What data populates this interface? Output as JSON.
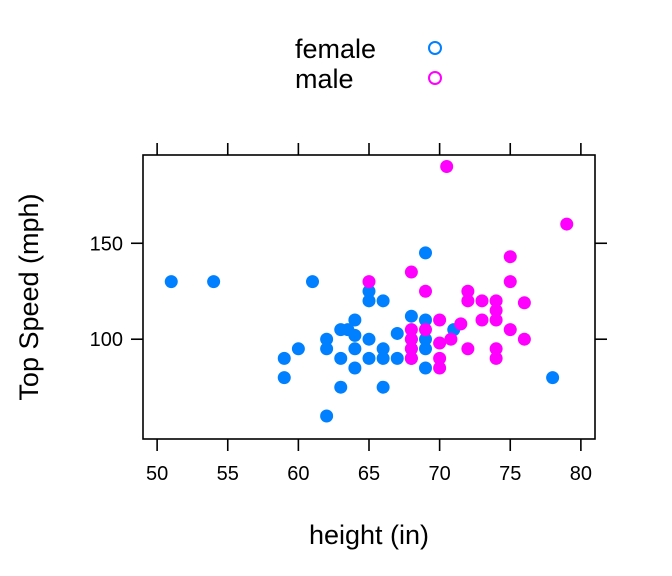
{
  "chart_data": {
    "type": "scatter",
    "xlabel": "height (in)",
    "ylabel": "Top Speed (mph)",
    "xlim": [
      49,
      81
    ],
    "ylim": [
      48,
      196
    ],
    "xticks": [
      50,
      55,
      60,
      65,
      70,
      75,
      80
    ],
    "yticks": [
      100,
      150
    ],
    "grid": false,
    "legend_position": "top-center",
    "series": [
      {
        "name": "female",
        "color": "#0080ff",
        "points": [
          [
            51,
            130
          ],
          [
            54,
            130
          ],
          [
            59,
            90
          ],
          [
            59,
            80
          ],
          [
            60,
            95
          ],
          [
            61,
            130
          ],
          [
            62,
            60
          ],
          [
            62,
            95
          ],
          [
            62,
            100
          ],
          [
            63,
            75
          ],
          [
            63,
            90
          ],
          [
            63,
            105
          ],
          [
            63.5,
            105
          ],
          [
            64,
            85
          ],
          [
            64,
            95
          ],
          [
            64,
            102
          ],
          [
            64,
            110
          ],
          [
            65,
            90
          ],
          [
            65,
            100
          ],
          [
            65,
            120
          ],
          [
            65,
            125
          ],
          [
            66,
            75
          ],
          [
            66,
            90
          ],
          [
            66,
            95
          ],
          [
            66,
            120
          ],
          [
            67,
            90
          ],
          [
            67,
            103
          ],
          [
            68,
            90
          ],
          [
            68,
            95
          ],
          [
            68,
            100
          ],
          [
            68,
            112
          ],
          [
            69,
            85
          ],
          [
            69,
            95
          ],
          [
            69,
            100
          ],
          [
            69,
            110
          ],
          [
            69,
            145
          ],
          [
            71,
            105
          ],
          [
            78,
            80
          ]
        ]
      },
      {
        "name": "male",
        "color": "#ff00ff",
        "points": [
          [
            65,
            130
          ],
          [
            68,
            90
          ],
          [
            68,
            95
          ],
          [
            68,
            100
          ],
          [
            68,
            105
          ],
          [
            68,
            135
          ],
          [
            69,
            125
          ],
          [
            69,
            105
          ],
          [
            70,
            85
          ],
          [
            70,
            90
          ],
          [
            70,
            98
          ],
          [
            70,
            110
          ],
          [
            70.5,
            190
          ],
          [
            70.8,
            100
          ],
          [
            71.5,
            108
          ],
          [
            72,
            95
          ],
          [
            72,
            120
          ],
          [
            72,
            125
          ],
          [
            73,
            110
          ],
          [
            73,
            120
          ],
          [
            74,
            90
          ],
          [
            74,
            95
          ],
          [
            74,
            110
          ],
          [
            74,
            115
          ],
          [
            74,
            120
          ],
          [
            75,
            105
          ],
          [
            75,
            130
          ],
          [
            75,
            143
          ],
          [
            76,
            100
          ],
          [
            76,
            119
          ],
          [
            79,
            160
          ]
        ]
      }
    ]
  }
}
